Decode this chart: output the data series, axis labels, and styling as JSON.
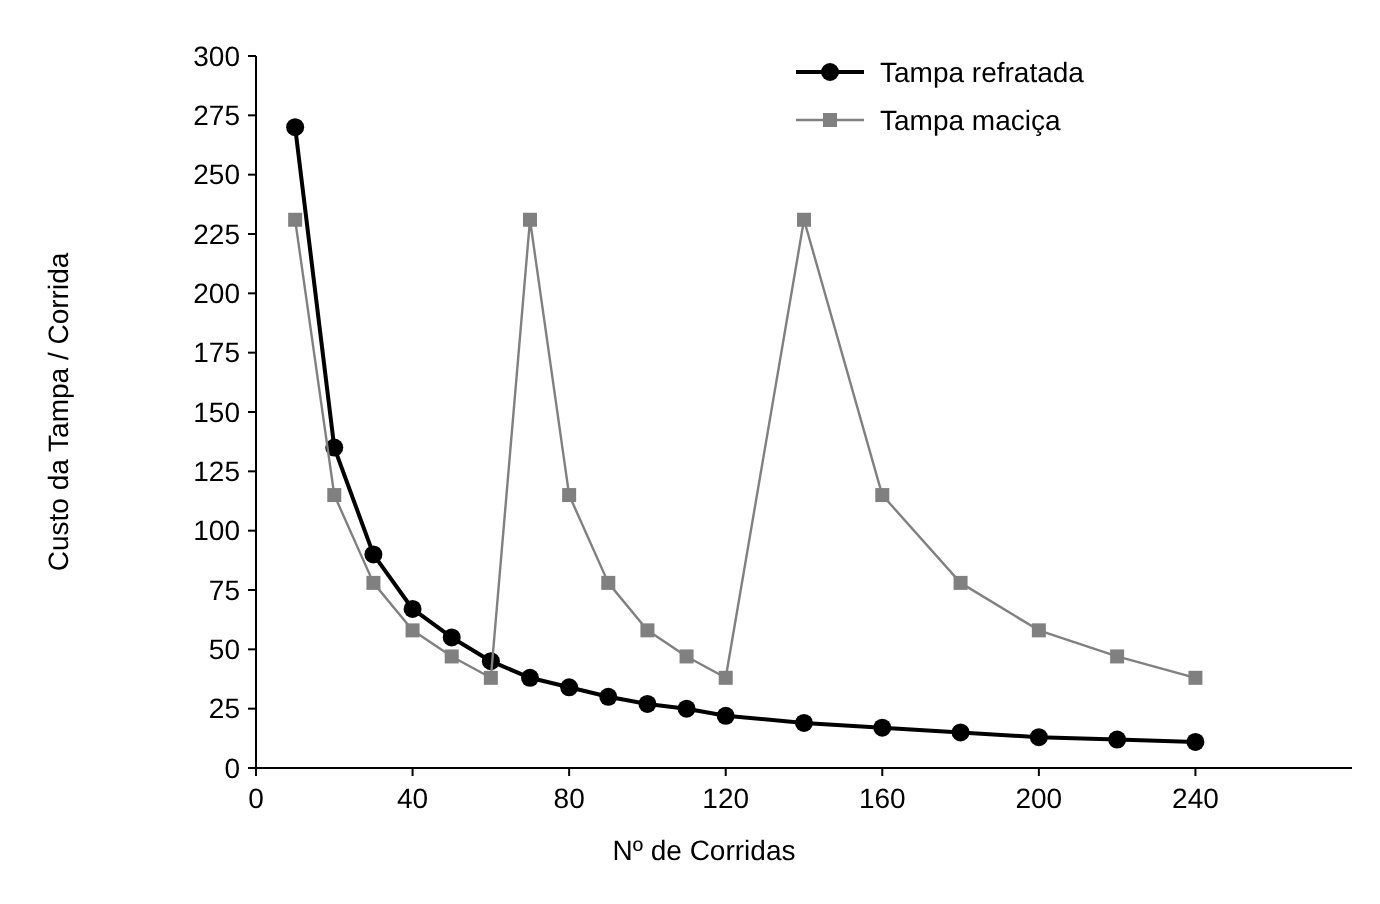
{
  "chart_data": {
    "type": "line",
    "xlabel": "Nº de Corridas",
    "ylabel": "Custo da Tampa / Corrida",
    "x": [
      10,
      20,
      30,
      40,
      50,
      60,
      70,
      80,
      90,
      100,
      110,
      120,
      140,
      160,
      180,
      200,
      220,
      240
    ],
    "series": [
      {
        "name": "Tampa refratada",
        "color": "#000000",
        "marker": "circle",
        "values": [
          270,
          135,
          90,
          67,
          55,
          45,
          38,
          34,
          30,
          27,
          25,
          22,
          19,
          17,
          15,
          13,
          12,
          11
        ]
      },
      {
        "name": "Tampa maciça",
        "color": "#808080",
        "marker": "square",
        "values": [
          231,
          115,
          78,
          58,
          47,
          38,
          231,
          115,
          78,
          58,
          47,
          38,
          231,
          115,
          78,
          58,
          47,
          38
        ]
      }
    ],
    "xlim": [
      0,
      280
    ],
    "ylim": [
      0,
      300
    ],
    "xticks": [
      0,
      40,
      80,
      120,
      160,
      200,
      240
    ],
    "yticks": [
      0,
      25,
      50,
      75,
      100,
      125,
      150,
      175,
      200,
      225,
      250,
      275,
      300
    ],
    "grid": false,
    "legend": "top right"
  }
}
